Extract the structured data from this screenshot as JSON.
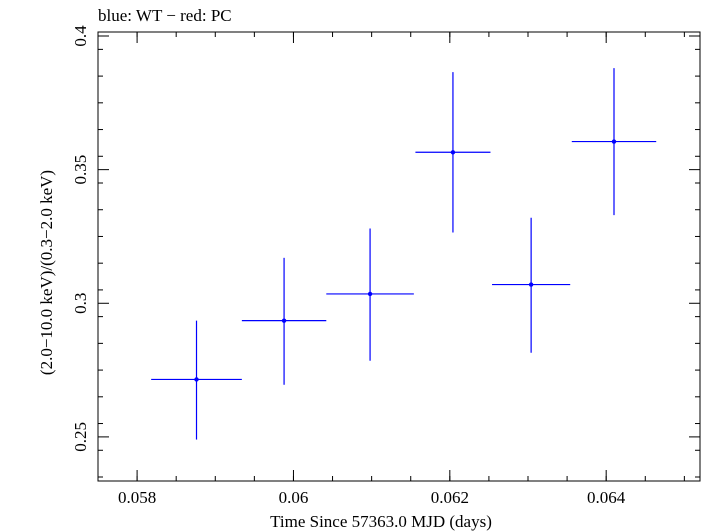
{
  "chart_data": {
    "type": "scatter",
    "title": "blue: WT − red: PC",
    "xlabel": "Time Since 57363.0 MJD (days)",
    "ylabel": "(2.0−10.0 keV)/(0.3−2.0 keV)",
    "xlim": [
      0.0575,
      0.0652
    ],
    "ylim": [
      0.2335,
      0.4015
    ],
    "x_ticks": [
      {
        "value": 0.058,
        "label": "0.058"
      },
      {
        "value": 0.06,
        "label": "0.06"
      },
      {
        "value": 0.062,
        "label": "0.062"
      },
      {
        "value": 0.064,
        "label": "0.064"
      }
    ],
    "y_ticks": [
      {
        "value": 0.25,
        "label": "0.25"
      },
      {
        "value": 0.3,
        "label": "0.3"
      },
      {
        "value": 0.35,
        "label": "0.35"
      },
      {
        "value": 0.4,
        "label": "0.4"
      }
    ],
    "series": [
      {
        "color": "#0000ff",
        "points": [
          {
            "x": 0.05876,
            "xerr": 0.00058,
            "y": 0.2715,
            "yerr_low": 0.0225,
            "yerr_high": 0.022
          },
          {
            "x": 0.05988,
            "xerr": 0.00054,
            "y": 0.2935,
            "yerr_low": 0.024,
            "yerr_high": 0.0235
          },
          {
            "x": 0.06098,
            "xerr": 0.00056,
            "y": 0.3035,
            "yerr_low": 0.025,
            "yerr_high": 0.0245
          },
          {
            "x": 0.06204,
            "xerr": 0.00048,
            "y": 0.3565,
            "yerr_low": 0.03,
            "yerr_high": 0.03
          },
          {
            "x": 0.06304,
            "xerr": 0.0005,
            "y": 0.307,
            "yerr_low": 0.0255,
            "yerr_high": 0.025
          },
          {
            "x": 0.0641,
            "xerr": 0.00054,
            "y": 0.3605,
            "yerr_low": 0.0275,
            "yerr_high": 0.0275
          }
        ]
      }
    ]
  }
}
